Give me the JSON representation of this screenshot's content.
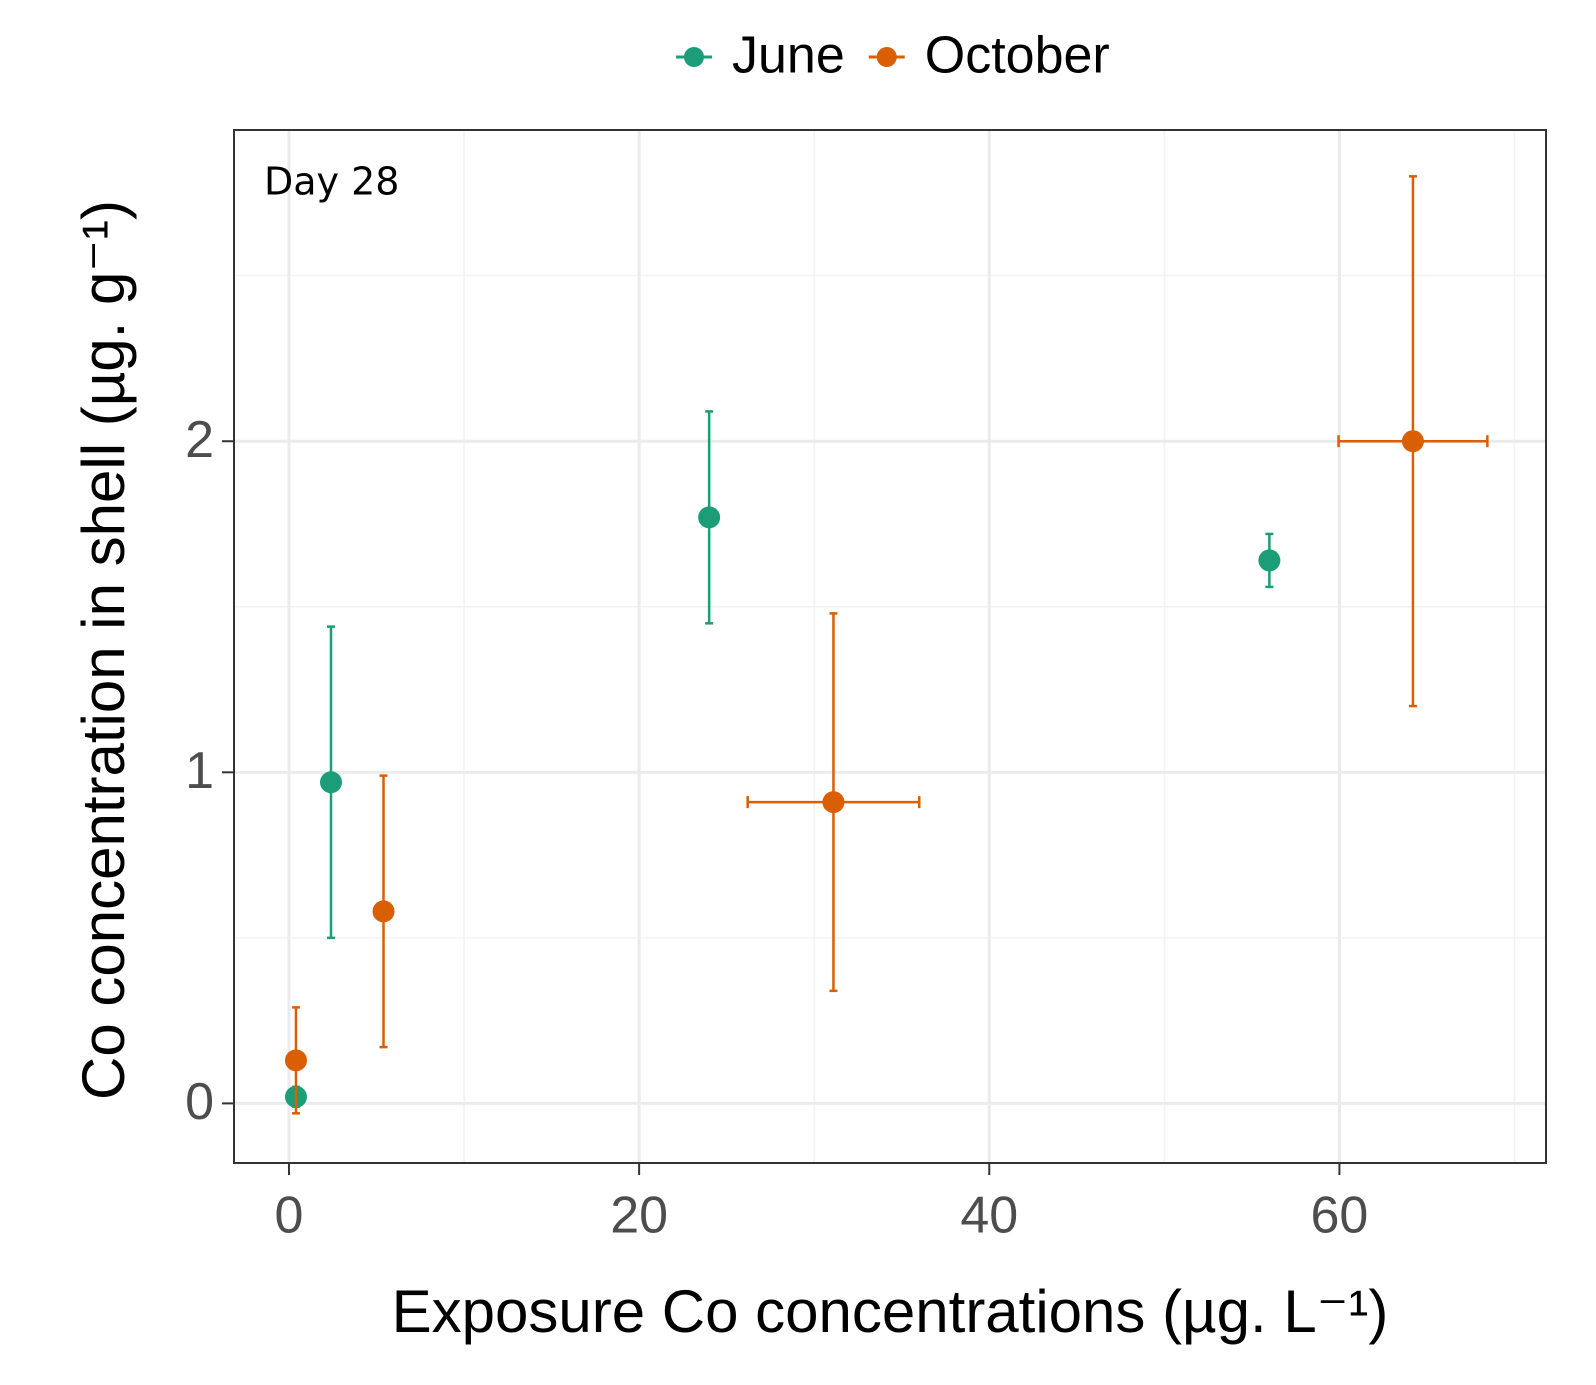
{
  "chart_data": {
    "type": "scatter",
    "x_label": "Exposure Co concentrations (µg. L⁻¹)",
    "y_label": "Co concentration in shell (µg. g⁻¹)",
    "annotation": "Day 28",
    "series": [
      {
        "name": "June",
        "color": "#1b9e77",
        "x": [
          0.4,
          2.4,
          24,
          56
        ],
        "values": [
          0.02,
          0.97,
          1.77,
          1.64
        ],
        "yerr": [
          0.03,
          0.47,
          0.32,
          0.08
        ],
        "xerr": [
          null,
          null,
          null,
          null
        ]
      },
      {
        "name": "October",
        "color": "#d95f02",
        "x": [
          0.4,
          5.4,
          31.1,
          64.2
        ],
        "values": [
          0.13,
          0.58,
          0.91,
          2.0
        ],
        "yerr": [
          0.16,
          0.41,
          0.57,
          0.8
        ],
        "xerr": [
          null,
          null,
          4.9,
          4.25
        ]
      }
    ],
    "xlim": [
      -3.14,
      71.8
    ],
    "ylim": [
      -0.18,
      2.94
    ],
    "xticks": [
      0,
      20,
      40,
      60
    ],
    "yticks": [
      0,
      1,
      2
    ],
    "xminor": [
      10,
      30,
      50,
      70
    ],
    "yminor": [
      0.5,
      1.5,
      2.5
    ],
    "grid": true,
    "legend": "top"
  }
}
